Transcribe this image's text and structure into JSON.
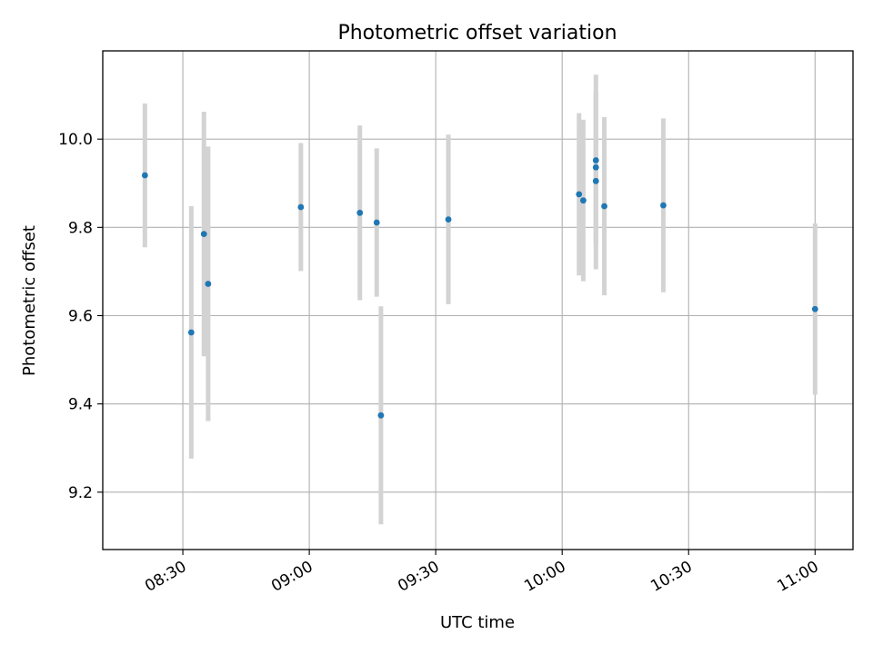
{
  "chart_data": {
    "type": "scatter",
    "title": "Photometric offset variation",
    "xlabel": "UTC time",
    "ylabel": "Photometric offset",
    "x_tick_labels": [
      "08:30",
      "09:00",
      "09:30",
      "10:00",
      "10:30",
      "11:00"
    ],
    "y_tick_labels": [
      "9.2",
      "9.4",
      "9.6",
      "9.8",
      "10.0"
    ],
    "y_ticks": [
      9.2,
      9.4,
      9.6,
      9.8,
      10.0
    ],
    "xlim": [
      "08:11",
      "11:09"
    ],
    "ylim": [
      9.07,
      10.2
    ],
    "grid": true,
    "point_color": "#1f77b4",
    "errorbar_color": "#d3d3d3",
    "series": [
      {
        "points": [
          {
            "x": "08:21",
            "y": 9.918,
            "err": 0.163
          },
          {
            "x": "08:32",
            "y": 9.562,
            "err": 0.286
          },
          {
            "x": "08:35",
            "y": 9.785,
            "err": 0.277
          },
          {
            "x": "08:36",
            "y": 9.672,
            "err": 0.311
          },
          {
            "x": "08:58",
            "y": 9.846,
            "err": 0.145
          },
          {
            "x": "09:12",
            "y": 9.833,
            "err": 0.198
          },
          {
            "x": "09:16",
            "y": 9.811,
            "err": 0.168
          },
          {
            "x": "09:17",
            "y": 9.374,
            "err": 0.247
          },
          {
            "x": "09:33",
            "y": 9.818,
            "err": 0.192
          },
          {
            "x": "10:04",
            "y": 9.875,
            "err": 0.184
          },
          {
            "x": "10:05",
            "y": 9.861,
            "err": 0.183
          },
          {
            "x": "10:08",
            "y": 9.952,
            "err": 0.194
          },
          {
            "x": "10:08",
            "y": 9.936,
            "err": 0.172
          },
          {
            "x": "10:08",
            "y": 9.905,
            "err": 0.2
          },
          {
            "x": "10:10",
            "y": 9.848,
            "err": 0.202
          },
          {
            "x": "10:24",
            "y": 9.85,
            "err": 0.197
          },
          {
            "x": "11:00",
            "y": 9.615,
            "err": 0.194
          }
        ]
      }
    ]
  }
}
